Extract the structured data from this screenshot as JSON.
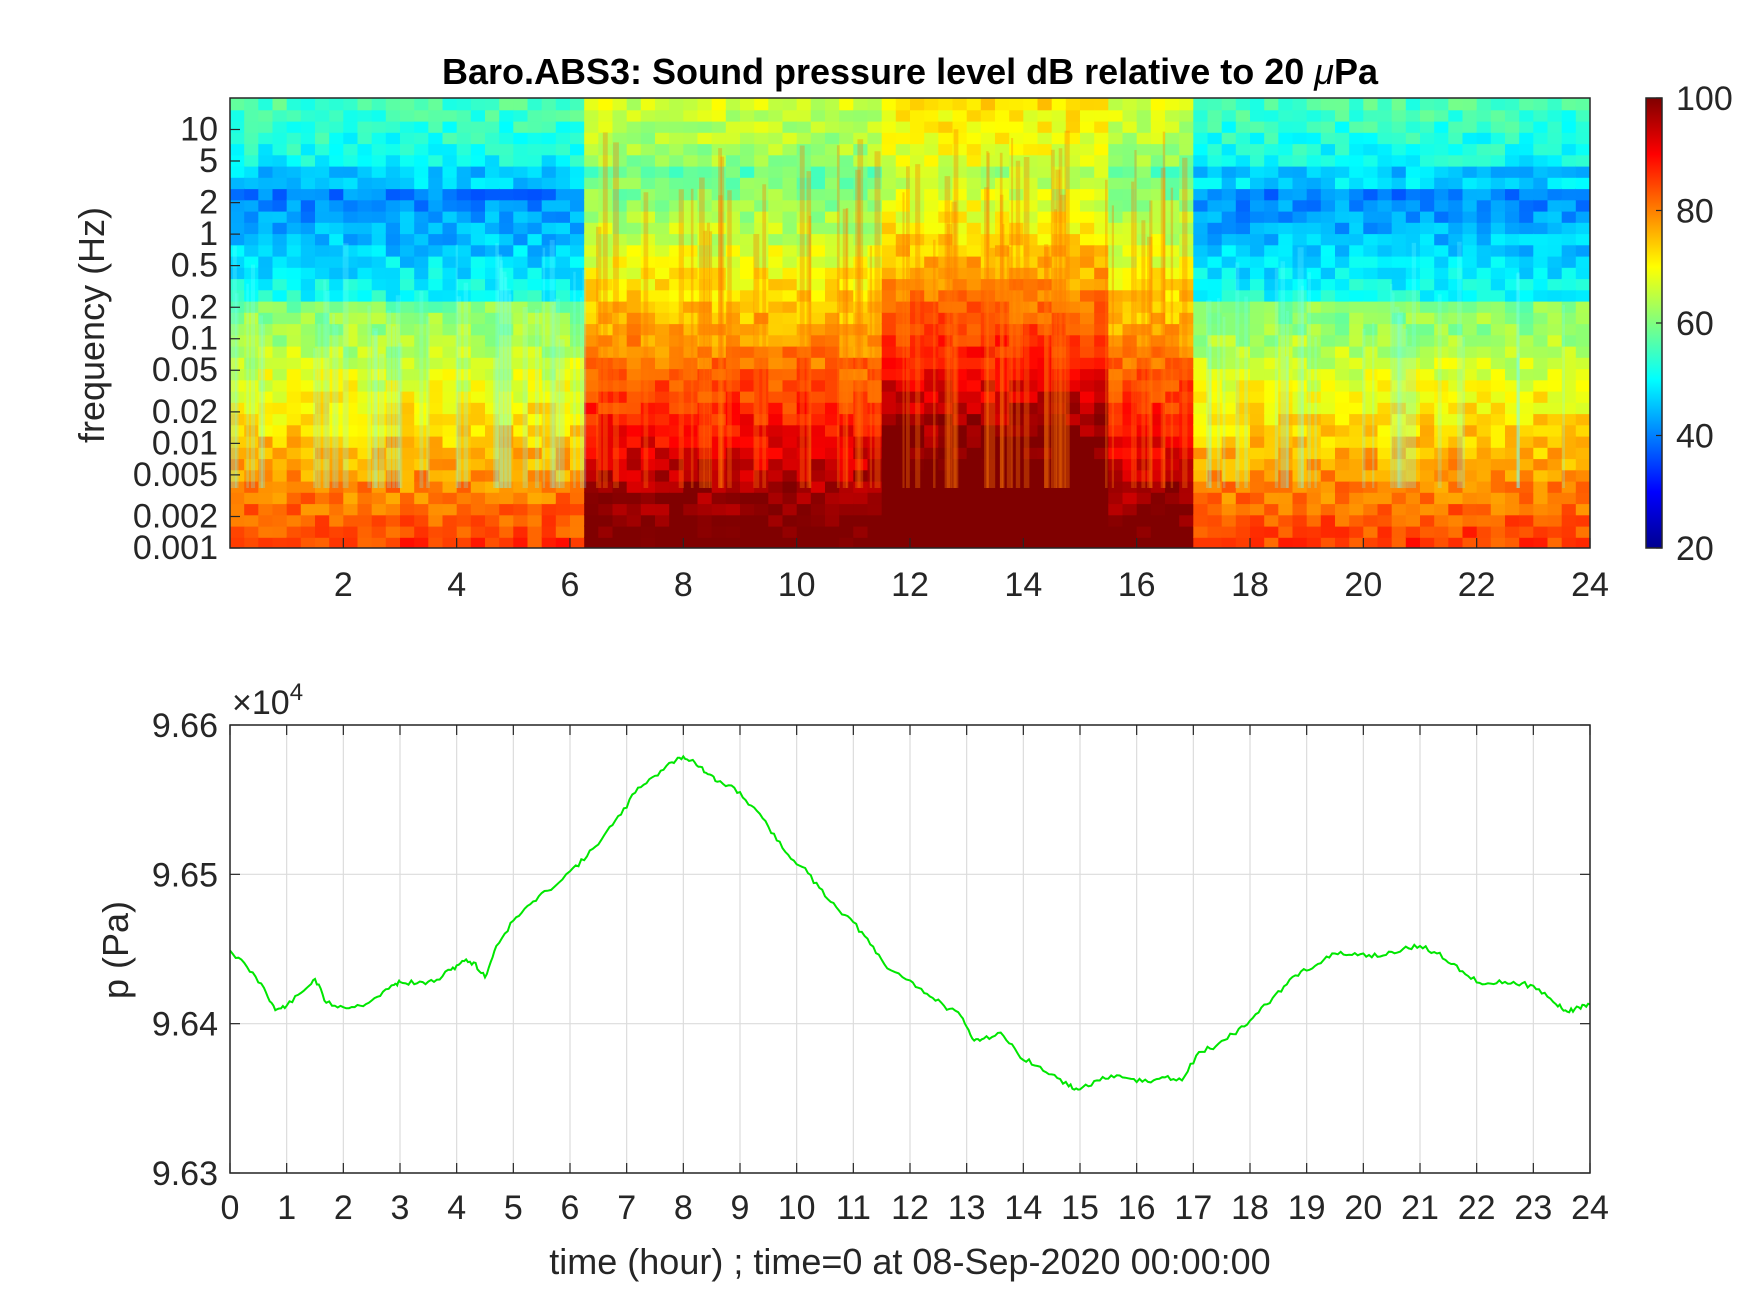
{
  "chart_data": [
    {
      "type": "heatmap",
      "title_prefix": "Baro.ABS3: Sound pressure level dB relative to 20 ",
      "title_mu": "μ",
      "title_suffix": "Pa",
      "ylabel": "frequency (Hz)",
      "y_scale": "log",
      "xlim": [
        0,
        24
      ],
      "ylim": [
        0.001,
        20
      ],
      "x_ticks": [
        "2",
        "4",
        "6",
        "8",
        "10",
        "12",
        "14",
        "16",
        "18",
        "20",
        "22",
        "24"
      ],
      "y_ticks": [
        "0.001",
        "0.002",
        "0.005",
        "0.01",
        "0.02",
        "0.05",
        "0.1",
        "0.2",
        "0.5",
        "1",
        "2",
        "5",
        "10"
      ],
      "colormap": "jet",
      "color_range": [
        20,
        100
      ],
      "colorbar_ticks": [
        "20",
        "40",
        "60",
        "80",
        "100"
      ],
      "activity_periods": [
        {
          "start_hour": 6.3,
          "end_hour": 17.0,
          "level": "elevated"
        },
        {
          "start_hour": 11.5,
          "end_hour": 15.5,
          "level": "peak"
        }
      ]
    },
    {
      "type": "line",
      "ylabel": "p (Pa)",
      "xlabel": "time (hour) ; time=0 at 08-Sep-2020 00:00:00",
      "y_multiplier": "×10",
      "y_multiplier_exp": "4",
      "xlim": [
        0,
        24
      ],
      "ylim": [
        9.63,
        9.66
      ],
      "x_ticks": [
        "0",
        "1",
        "2",
        "3",
        "4",
        "5",
        "6",
        "7",
        "8",
        "9",
        "10",
        "11",
        "12",
        "13",
        "14",
        "15",
        "16",
        "17",
        "18",
        "19",
        "20",
        "21",
        "22",
        "23",
        "24"
      ],
      "y_ticks": [
        "9.63",
        "9.64",
        "9.65",
        "9.66"
      ],
      "grid": true,
      "series": [
        {
          "color": "#00e600",
          "x": [
            0,
            0.3,
            0.6,
            0.8,
            1.0,
            1.3,
            1.5,
            1.7,
            2.0,
            2.3,
            2.6,
            2.9,
            3.0,
            3.3,
            3.6,
            3.9,
            4.1,
            4.3,
            4.5,
            4.7,
            5.0,
            5.3,
            5.6,
            6.0,
            6.3,
            6.6,
            6.9,
            7.2,
            7.5,
            7.8,
            8.0,
            8.2,
            8.4,
            8.6,
            8.9,
            9.2,
            9.5,
            9.8,
            10.1,
            10.4,
            10.7,
            11.0,
            11.3,
            11.6,
            12.0,
            12.3,
            12.6,
            12.9,
            13.1,
            13.3,
            13.6,
            13.9,
            14.2,
            14.5,
            14.8,
            15.0,
            15.3,
            15.6,
            15.9,
            16.2,
            16.5,
            16.8,
            17.1,
            17.4,
            17.7,
            18.0,
            18.3,
            18.6,
            18.9,
            19.2,
            19.5,
            19.8,
            20.1,
            20.4,
            20.7,
            21.0,
            21.3,
            21.6,
            21.9,
            22.2,
            22.5,
            22.8,
            23.1,
            23.4,
            23.6,
            23.8,
            24.0
          ],
          "y": [
            9.6449,
            9.6438,
            9.6424,
            9.6409,
            9.6412,
            9.6422,
            9.643,
            9.6414,
            9.6411,
            9.6412,
            9.6418,
            9.6426,
            9.6428,
            9.6427,
            9.6428,
            9.6436,
            9.6442,
            9.6441,
            9.6431,
            9.6452,
            9.6469,
            9.648,
            9.6489,
            9.6502,
            9.6512,
            9.6526,
            9.654,
            9.6558,
            9.6566,
            9.6575,
            9.6579,
            9.6575,
            9.6568,
            9.6562,
            9.6558,
            9.6546,
            9.6532,
            9.6515,
            9.6505,
            9.6491,
            9.6478,
            9.6468,
            9.6453,
            9.6437,
            9.6429,
            9.642,
            9.6412,
            9.6405,
            9.639,
            9.639,
            9.6394,
            9.638,
            9.6372,
            9.6366,
            9.6358,
            9.6356,
            9.6362,
            9.6364,
            9.6363,
            9.6361,
            9.6364,
            9.6362,
            9.6381,
            9.6385,
            9.6393,
            9.6402,
            9.6413,
            9.6425,
            9.6435,
            9.644,
            9.6447,
            9.6446,
            9.6446,
            9.6446,
            9.645,
            9.6452,
            9.6447,
            9.644,
            9.643,
            9.6427,
            9.6428,
            9.6427,
            9.6423,
            9.6413,
            9.6408,
            9.6411,
            9.6413
          ]
        }
      ]
    }
  ]
}
